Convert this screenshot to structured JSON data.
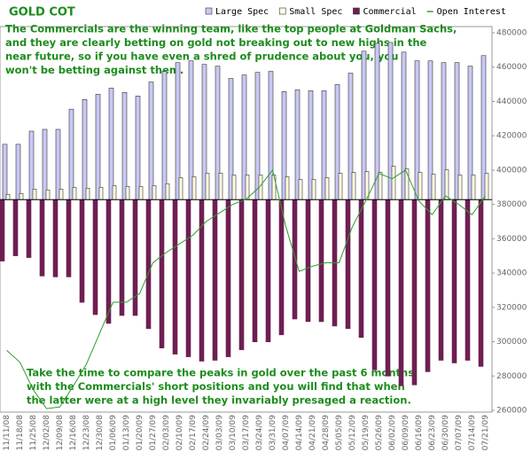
{
  "chart_data": {
    "type": "bar",
    "title": "GOLD COT",
    "annotations": [
      {
        "lines": [
          "The Commercials are the winning team, like the top people at Goldman Sachs,",
          "and they are clearly betting on gold not breaking out to new highs in the",
          "near future, so if you have even a shred of prudence about you, you",
          "won't be betting against them."
        ]
      },
      {
        "lines": [
          "Take the time to compare the peaks in gold over the past 6 months",
          "with the Commercials' short positions and you will find that when",
          "the latter were at a high level they invariably presaged a reaction."
        ]
      }
    ],
    "categories": [
      "11/11/08",
      "11/18/08",
      "11/25/08",
      "12/02/08",
      "12/09/08",
      "12/16/08",
      "12/23/08",
      "12/30/08",
      "01/06/09",
      "01/13/09",
      "01/20/09",
      "01/27/09",
      "02/03/09",
      "02/10/09",
      "02/17/09",
      "02/24/09",
      "03/03/09",
      "03/10/09",
      "03/17/09",
      "03/24/09",
      "03/31/09",
      "04/07/09",
      "04/14/09",
      "04/21/09",
      "04/28/09",
      "05/05/09",
      "05/12/09",
      "05/19/09",
      "05/26/09",
      "06/02/09",
      "06/09/09",
      "06/16/09",
      "06/23/09",
      "06/30/09",
      "07/07/09",
      "07/14/09",
      "07/21/09"
    ],
    "ylim": [
      -240,
      190
    ],
    "y2lim": [
      260000,
      480000
    ],
    "y2ticks": [
      260000,
      280000,
      300000,
      320000,
      340000,
      360000,
      380000,
      400000,
      420000,
      440000,
      460000,
      480000
    ],
    "series": [
      {
        "name": "Large Spec",
        "color": "#c8c8f6",
        "values": [
          63,
          63,
          78,
          80,
          80,
          103,
          114,
          120,
          127,
          122,
          118,
          134,
          146,
          156,
          158,
          154,
          152,
          138,
          142,
          145,
          146,
          123,
          125,
          124,
          124,
          131,
          144,
          169,
          178,
          179,
          168,
          158,
          158,
          156,
          156,
          152,
          164
        ]
      },
      {
        "name": "Small Spec",
        "color": "#fffbe0",
        "values": [
          6,
          7,
          12,
          11,
          12,
          14,
          13,
          14,
          16,
          15,
          15,
          16,
          18,
          25,
          26,
          30,
          30,
          28,
          28,
          28,
          28,
          26,
          23,
          23,
          25,
          30,
          31,
          32,
          31,
          38,
          35,
          31,
          29,
          34,
          28,
          28,
          30
        ]
      },
      {
        "name": "Commercial",
        "color": "#6e1f52",
        "values": [
          -70,
          -64,
          -66,
          -87,
          -88,
          -88,
          -117,
          -131,
          -141,
          -132,
          -132,
          -147,
          -169,
          -176,
          -179,
          -184,
          -183,
          -179,
          -171,
          -162,
          -162,
          -154,
          -136,
          -139,
          -139,
          -144,
          -147,
          -157,
          -194,
          -201,
          -212,
          -211,
          -196,
          -183,
          -186,
          -183,
          -190
        ]
      },
      {
        "name": "Open Interest",
        "type": "line",
        "axis": "y2",
        "color": "#2f9e2f",
        "values": [
          295000,
          288000,
          272000,
          261000,
          262000,
          274000,
          287000,
          305000,
          323000,
          323000,
          328000,
          346000,
          352000,
          357000,
          362000,
          370000,
          375000,
          380000,
          383000,
          390000,
          400000,
          367000,
          341000,
          344000,
          346000,
          346000,
          367000,
          382000,
          398000,
          395000,
          400000,
          382000,
          374000,
          385000,
          380000,
          374000,
          385000
        ]
      }
    ]
  }
}
